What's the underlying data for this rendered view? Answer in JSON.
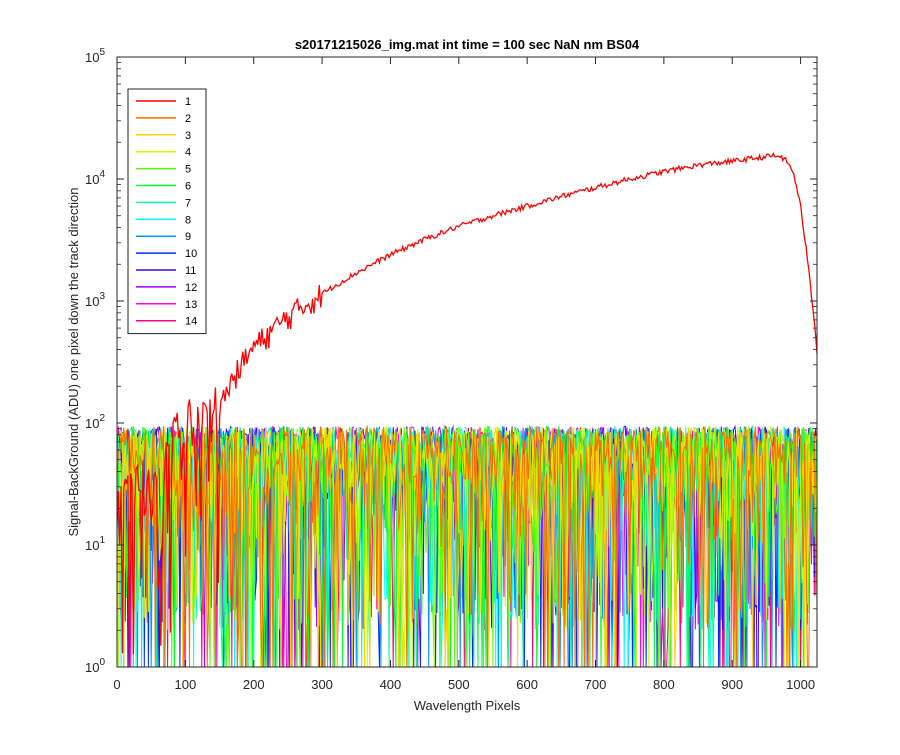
{
  "chart_data": {
    "type": "line",
    "title": "s20171215026_img.mat int time = 100 sec  NaN nm BS04",
    "xlabel": "Wavelength Pixels",
    "ylabel": "Signal-BackGround (ADU) one pixel down the track direction",
    "xlim": [
      0,
      1024
    ],
    "ylim": [
      1,
      100000
    ],
    "yscale": "log",
    "grid": false,
    "legend_position": "top-left",
    "xticks": [
      0,
      100,
      200,
      300,
      400,
      500,
      600,
      700,
      800,
      900,
      1000
    ],
    "xtick_labels": [
      "0",
      "100",
      "200",
      "300",
      "400",
      "500",
      "600",
      "700",
      "800",
      "900",
      "1000"
    ],
    "yticks": [
      1,
      10,
      100,
      1000,
      10000,
      100000
    ],
    "ytick_labels": [
      {
        "base": "10",
        "exp": "0"
      },
      {
        "base": "10",
        "exp": "1"
      },
      {
        "base": "10",
        "exp": "2"
      },
      {
        "base": "10",
        "exp": "3"
      },
      {
        "base": "10",
        "exp": "4"
      },
      {
        "base": "10",
        "exp": "5"
      }
    ],
    "series": [
      {
        "name": "1",
        "color": "#ff0000",
        "x": [
          0,
          20,
          40,
          60,
          80,
          100,
          120,
          140,
          160,
          180,
          200,
          250,
          300,
          350,
          400,
          450,
          500,
          550,
          600,
          650,
          700,
          750,
          800,
          850,
          900,
          940,
          960,
          970,
          980,
          990,
          1000,
          1010,
          1020,
          1024
        ],
        "y": [
          30,
          35,
          40,
          45,
          55,
          65,
          80,
          110,
          180,
          290,
          420,
          750,
          1150,
          1700,
          2400,
          3200,
          4100,
          5000,
          6000,
          7200,
          8500,
          10000,
          11500,
          13000,
          14000,
          15000,
          15500,
          15300,
          14000,
          11000,
          6000,
          2200,
          700,
          380
        ]
      },
      {
        "name": "2",
        "color": "#ff6b00"
      },
      {
        "name": "3",
        "color": "#ffd500"
      },
      {
        "name": "4",
        "color": "#c2ff00"
      },
      {
        "name": "5",
        "color": "#55ff00"
      },
      {
        "name": "6",
        "color": "#00ff2b"
      },
      {
        "name": "7",
        "color": "#00ff97"
      },
      {
        "name": "8",
        "color": "#00ffff"
      },
      {
        "name": "9",
        "color": "#0097ff"
      },
      {
        "name": "10",
        "color": "#002bff"
      },
      {
        "name": "11",
        "color": "#4000ff"
      },
      {
        "name": "12",
        "color": "#a200ff"
      },
      {
        "name": "13",
        "color": "#ff00ea"
      },
      {
        "name": "14",
        "color": "#ff0080"
      }
    ],
    "noise_series": {
      "description_note": "",
      "y_range": [
        1,
        100
      ],
      "y_typical_range": [
        2,
        90
      ]
    }
  }
}
